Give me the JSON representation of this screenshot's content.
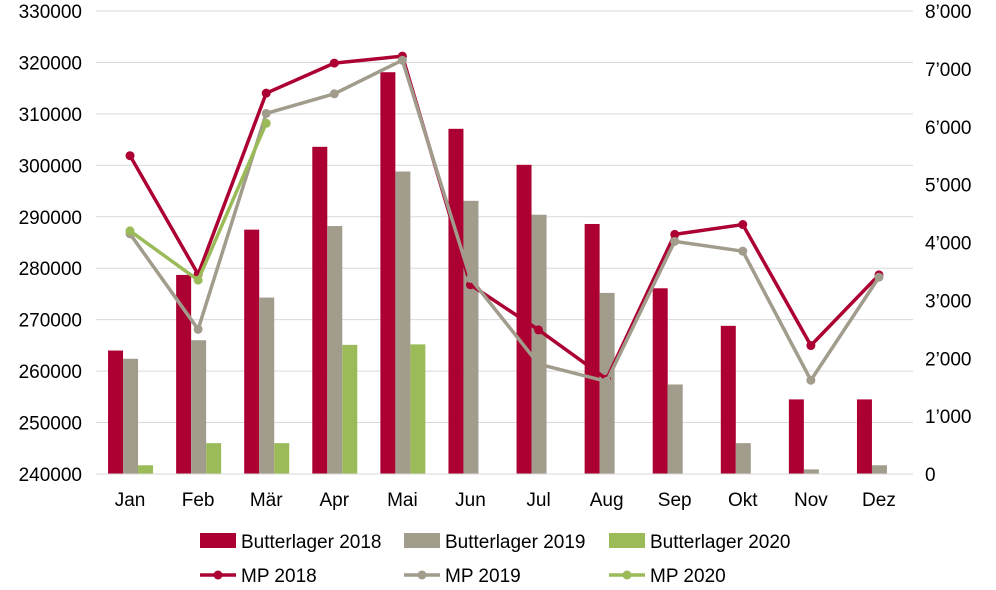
{
  "chart_data": {
    "type": "bar",
    "categories": [
      "Jan",
      "Feb",
      "Mär",
      "Apr",
      "Mai",
      "Jun",
      "Jul",
      "Aug",
      "Sep",
      "Okt",
      "Nov",
      "Dez"
    ],
    "bar_series": [
      {
        "name": "Butterlager 2018",
        "color": "#ac0033",
        "values": [
          264000,
          278700,
          287500,
          303600,
          318100,
          307100,
          300100,
          288600,
          276100,
          268800,
          254500,
          254500
        ]
      },
      {
        "name": "Butterlager 2019",
        "color": "#a29c8c",
        "values": [
          262400,
          266000,
          274300,
          288200,
          298800,
          293100,
          290400,
          275200,
          257400,
          246000,
          240900,
          241700
        ]
      },
      {
        "name": "Butterlager 2020",
        "color": "#9bbb59",
        "values": [
          241700,
          246000,
          246000,
          265100,
          265200,
          null,
          null,
          null,
          null,
          null,
          null,
          null
        ]
      }
    ],
    "line_series": [
      {
        "name": "MP 2018",
        "color": "#ac0033",
        "values": [
          5500,
          3450,
          6580,
          7100,
          7220,
          3270,
          2490,
          1640,
          4140,
          4310,
          2220,
          3440
        ]
      },
      {
        "name": "MP 2019",
        "color": "#a29c8c",
        "values": [
          4150,
          2500,
          6230,
          6570,
          7150,
          3380,
          1900,
          1600,
          4020,
          3850,
          1620,
          3400
        ]
      },
      {
        "name": "MP 2020",
        "color": "#9bbb59",
        "values": [
          4200,
          3350,
          6060,
          null,
          null,
          null,
          null,
          null,
          null,
          null,
          null,
          null
        ]
      }
    ],
    "y_left": {
      "min": 240000,
      "max": 330000,
      "step": 10000,
      "ticks": [
        "240000",
        "250000",
        "260000",
        "270000",
        "280000",
        "290000",
        "300000",
        "310000",
        "320000",
        "330000"
      ]
    },
    "y_right": {
      "min": 0,
      "max": 8000,
      "step": 1000,
      "ticks": [
        "0",
        "1’000",
        "2’000",
        "3’000",
        "4’000",
        "5’000",
        "6’000",
        "7’000",
        "8’000"
      ]
    },
    "grid": true,
    "legend_position": "bottom"
  }
}
